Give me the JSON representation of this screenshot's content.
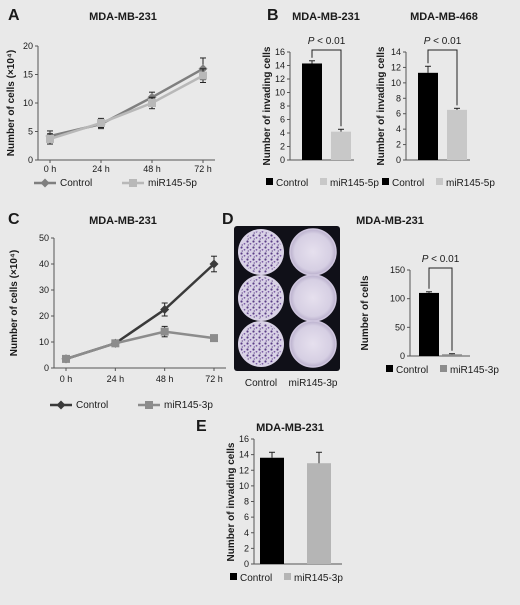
{
  "panels": {
    "A": {
      "letter": "A",
      "title": "MDA-MB-231",
      "chart_data": {
        "type": "line",
        "title": "MDA-MB-231",
        "xlabel": "",
        "ylabel": "Number of cells (×10⁴)",
        "categories": [
          "0 h",
          "24 h",
          "48 h",
          "72 h"
        ],
        "ylim": [
          0,
          20
        ],
        "yticks": [
          0,
          5,
          10,
          15,
          20
        ],
        "legend_position": "bottom",
        "series": [
          {
            "name": "Control",
            "values": [
              4.2,
              6.3,
              11.0,
              16.0
            ],
            "errors": [
              0.9,
              0.8,
              0.9,
              1.9
            ],
            "color": "#7f7f7f",
            "marker": "diamond"
          },
          {
            "name": "miR145-5p",
            "values": [
              3.7,
              6.5,
              10.0,
              14.8
            ],
            "errors": [
              0.9,
              0.8,
              1.0,
              1.2
            ],
            "color": "#b8b8b8",
            "marker": "square"
          }
        ]
      }
    },
    "B1": {
      "letter": "B",
      "title": "MDA-MB-231",
      "pvalue": "P < 0.01",
      "chart_data": {
        "type": "bar",
        "title": "MDA-MB-231",
        "xlabel": "",
        "ylabel": "Number of invading cells",
        "categories": [
          "Control",
          "miR145-5p"
        ],
        "values": [
          14.3,
          4.2
        ],
        "errors": [
          0.4,
          0.35
        ],
        "colors": [
          "#000000",
          "#c8c8c8"
        ],
        "ylim": [
          0,
          16
        ],
        "yticks": [
          0,
          2,
          4,
          6,
          8,
          10,
          12,
          14,
          16
        ],
        "legend_position": "bottom"
      }
    },
    "B2": {
      "title": "MDA-MB-468",
      "pvalue": "P < 0.01",
      "chart_data": {
        "type": "bar",
        "title": "MDA-MB-468",
        "xlabel": "",
        "ylabel": "Number of invading cells",
        "categories": [
          "Control",
          "miR145-5p"
        ],
        "values": [
          11.3,
          6.5
        ],
        "errors": [
          0.85,
          0.2
        ],
        "colors": [
          "#000000",
          "#c8c8c8"
        ],
        "ylim": [
          0,
          14
        ],
        "yticks": [
          0,
          2,
          4,
          6,
          8,
          10,
          12,
          14
        ],
        "legend_position": "bottom"
      }
    },
    "C": {
      "letter": "C",
      "title": "MDA-MB-231",
      "chart_data": {
        "type": "line",
        "title": "MDA-MB-231",
        "xlabel": "",
        "ylabel": "Number of cells (×10⁴)",
        "categories": [
          "0 h",
          "24 h",
          "48 h",
          "72 h"
        ],
        "ylim": [
          0,
          50
        ],
        "yticks": [
          0,
          10,
          20,
          30,
          40,
          50
        ],
        "legend_position": "bottom",
        "series": [
          {
            "name": "Control",
            "values": [
              3.5,
              9.5,
              22.5,
              40.0
            ],
            "errors": [
              1.0,
              1.0,
              2.5,
              3.0
            ],
            "color": "#3a3a3a",
            "marker": "diamond"
          },
          {
            "name": "miR145-3p",
            "values": [
              3.5,
              9.5,
              14.0,
              11.5
            ],
            "errors": [
              1.0,
              1.0,
              2.0,
              1.0
            ],
            "color": "#8c8c8c",
            "marker": "square"
          }
        ]
      }
    },
    "D": {
      "letter": "D",
      "title": "MDA-MB-231",
      "pvalue": "P < 0.01",
      "plate_labels": [
        "Control",
        "miR145-3p"
      ],
      "chart_data": {
        "type": "bar",
        "title": "MDA-MB-231",
        "xlabel": "",
        "ylabel": "Number of cells",
        "categories": [
          "Control",
          "miR145-3p"
        ],
        "values": [
          110,
          3
        ],
        "errors": [
          2,
          1
        ],
        "colors": [
          "#000000",
          "#8c8c8c"
        ],
        "ylim": [
          0,
          150
        ],
        "yticks": [
          0,
          50,
          100,
          150
        ],
        "legend_position": "bottom"
      }
    },
    "E": {
      "letter": "E",
      "title": "MDA-MB-231",
      "chart_data": {
        "type": "bar",
        "title": "MDA-MB-231",
        "xlabel": "",
        "ylabel": "Number of invading cells",
        "categories": [
          "Control",
          "miR145-3p"
        ],
        "values": [
          13.6,
          12.9
        ],
        "errors": [
          0.7,
          1.4
        ],
        "colors": [
          "#000000",
          "#b5b5b5"
        ],
        "ylim": [
          0,
          16
        ],
        "yticks": [
          0,
          2,
          4,
          6,
          8,
          10,
          12,
          14,
          16
        ],
        "legend_position": "bottom"
      }
    }
  }
}
